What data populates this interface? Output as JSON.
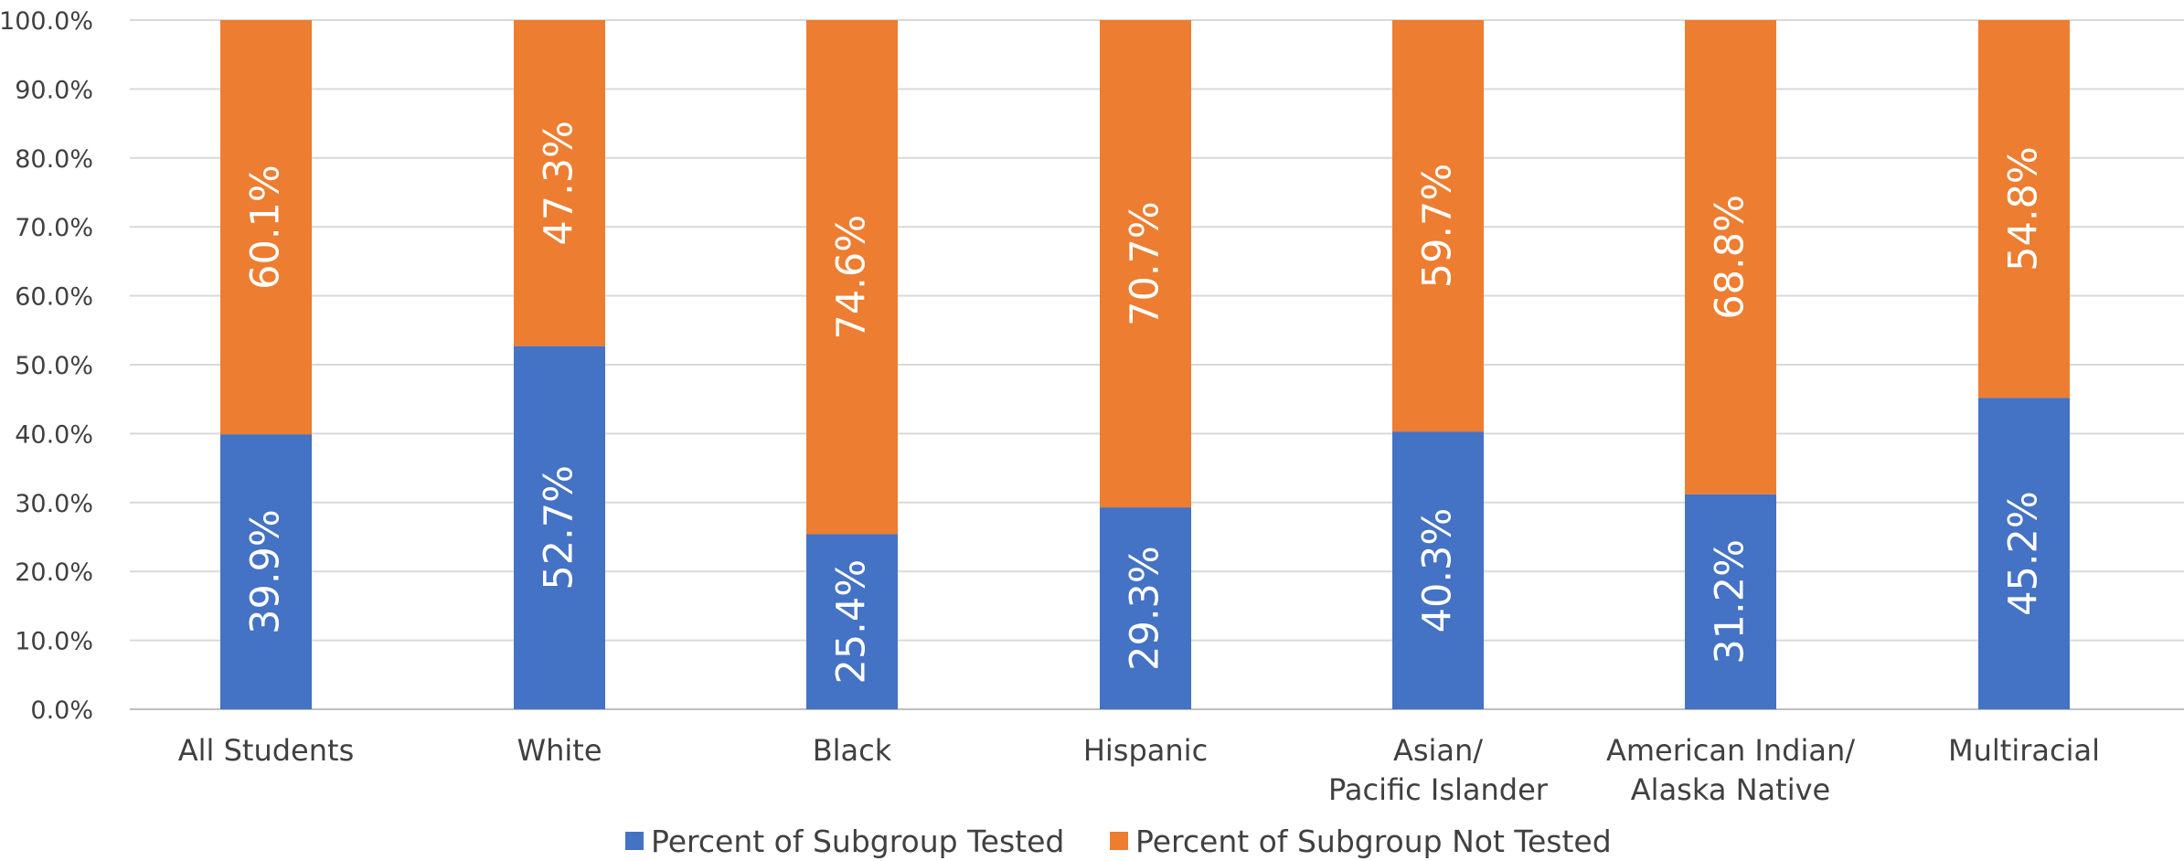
{
  "chart_data": {
    "type": "bar",
    "stacked": true,
    "categories": [
      [
        "All Students"
      ],
      [
        "White"
      ],
      [
        "Black"
      ],
      [
        "Hispanic"
      ],
      [
        "Asian/",
        "Pacific Islander"
      ],
      [
        "American Indian/",
        "Alaska Native"
      ],
      [
        "Multiracial"
      ]
    ],
    "series": [
      {
        "name": "Percent of Subgroup Tested",
        "color": "#4472C4",
        "values": [
          39.9,
          52.7,
          25.4,
          29.3,
          40.3,
          31.2,
          45.2
        ],
        "labels": [
          "39.9%",
          "52.7%",
          "25.4%",
          "29.3%",
          "40.3%",
          "31.2%",
          "45.2%"
        ]
      },
      {
        "name": "Percent of Subgroup Not Tested",
        "color": "#ED7D31",
        "values": [
          60.1,
          47.3,
          74.6,
          70.7,
          59.7,
          68.8,
          54.8
        ],
        "labels": [
          "60.1%",
          "47.3%",
          "74.6%",
          "70.7%",
          "59.7%",
          "68.8%",
          "54.8%"
        ]
      }
    ],
    "ylim": [
      0,
      100
    ],
    "yticks": [
      "0.0%",
      "10.0%",
      "20.0%",
      "30.0%",
      "40.0%",
      "50.0%",
      "60.0%",
      "70.0%",
      "80.0%",
      "90.0%",
      "100.0%"
    ],
    "grid": true,
    "legend_position": "bottom",
    "data_label_orientation": "rotated-vertical"
  }
}
